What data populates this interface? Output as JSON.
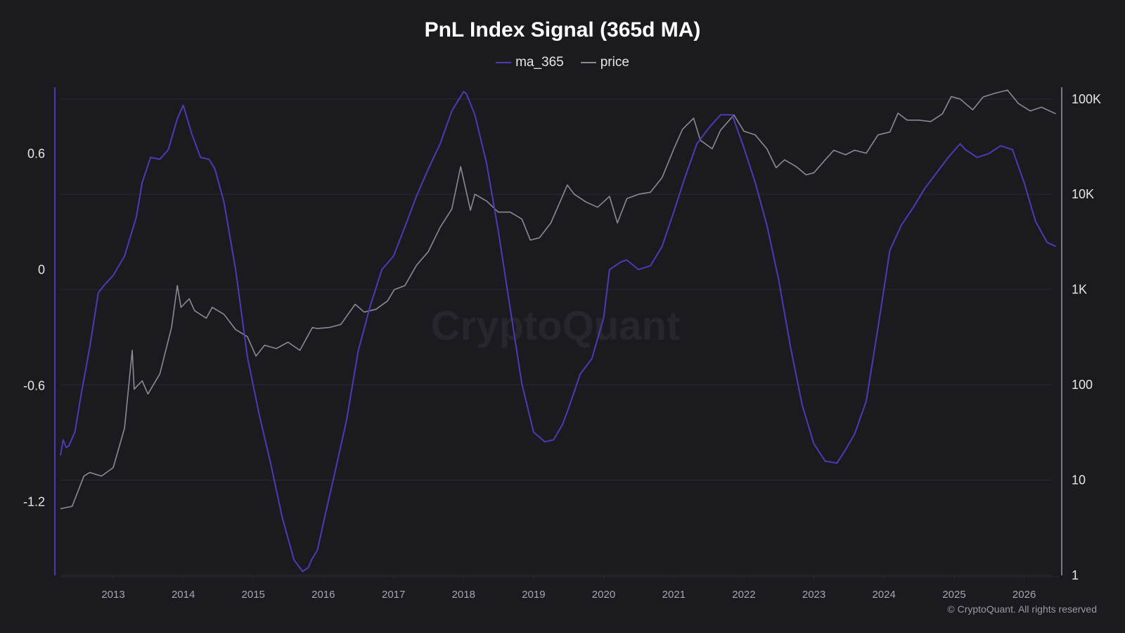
{
  "chart_data": {
    "type": "line",
    "title": "PnL Index Signal (365d MA)",
    "watermark": "CryptoQuant",
    "copyright": "© CryptoQuant. All rights reserved",
    "x_range": [
      "2012-04-01",
      "2026-07-01"
    ],
    "x_ticks": [
      "2013",
      "2014",
      "2015",
      "2016",
      "2017",
      "2018",
      "2019",
      "2020",
      "2021",
      "2022",
      "2023",
      "2024",
      "2025",
      "2026"
    ],
    "y_left": {
      "ticks": [
        0.6,
        0,
        -0.6,
        -1.2
      ],
      "tick_labels": [
        "0.6",
        "0",
        "-0.6",
        "-1.2"
      ],
      "range": [
        -1.58,
        1.03
      ]
    },
    "y_right": {
      "scale": "log",
      "ticks": [
        100000,
        10000,
        1000,
        100,
        10,
        1
      ],
      "tick_labels": [
        "100K",
        "10K",
        "1K",
        "100",
        "10",
        "1"
      ],
      "range": [
        1,
        200000
      ]
    },
    "grid": "horizontal",
    "legend_position": "top-center",
    "colors": {
      "background": "#1a1a1f",
      "ma_365": "#4d3bb5",
      "price": "#8a8a92",
      "grid": "#2b2b33",
      "left_axis": "#4d3bb5",
      "right_axis": "#9a9aa2"
    },
    "series": [
      {
        "name": "ma_365",
        "axis": "left",
        "x": [
          "2012-04-01",
          "2012-04-15",
          "2012-05-01",
          "2012-05-15",
          "2012-06-15",
          "2012-07-15",
          "2012-09-01",
          "2012-10-15",
          "2012-11-15",
          "2013-01-01",
          "2013-03-01",
          "2013-05-01",
          "2013-06-01",
          "2013-07-15",
          "2013-09-01",
          "2013-10-15",
          "2013-12-01",
          "2014-01-01",
          "2014-02-15",
          "2014-04-01",
          "2014-05-15",
          "2014-06-15",
          "2014-08-01",
          "2014-10-01",
          "2014-12-01",
          "2015-02-01",
          "2015-04-01",
          "2015-06-01",
          "2015-08-01",
          "2015-09-15",
          "2015-10-15",
          "2015-11-01",
          "2015-12-01",
          "2016-01-15",
          "2016-03-01",
          "2016-05-01",
          "2016-07-01",
          "2016-09-01",
          "2016-11-01",
          "2017-01-01",
          "2017-03-01",
          "2017-05-01",
          "2017-07-01",
          "2017-09-01",
          "2017-11-01",
          "2018-01-01",
          "2018-01-15",
          "2018-03-01",
          "2018-05-01",
          "2018-07-01",
          "2018-09-01",
          "2018-11-01",
          "2019-01-01",
          "2019-03-01",
          "2019-04-15",
          "2019-06-01",
          "2019-07-01",
          "2019-09-01",
          "2019-11-01",
          "2020-01-01",
          "2020-02-01",
          "2020-04-01",
          "2020-05-01",
          "2020-07-01",
          "2020-09-01",
          "2020-11-01",
          "2021-01-01",
          "2021-03-01",
          "2021-05-01",
          "2021-07-01",
          "2021-09-01",
          "2021-11-01",
          "2022-01-01",
          "2022-03-01",
          "2022-05-01",
          "2022-07-01",
          "2022-09-01",
          "2022-11-01",
          "2023-01-01",
          "2023-03-01",
          "2023-05-01",
          "2023-06-15",
          "2023-08-01",
          "2023-10-01",
          "2023-12-01",
          "2024-02-01",
          "2024-04-01",
          "2024-06-01",
          "2024-08-01",
          "2024-10-01",
          "2024-12-01",
          "2025-02-01",
          "2025-03-01",
          "2025-05-01",
          "2025-07-01",
          "2025-09-01",
          "2025-11-01",
          "2026-01-01",
          "2026-03-01",
          "2026-05-01",
          "2026-06-15"
        ],
        "y": [
          -0.96,
          -0.88,
          -0.92,
          -0.91,
          -0.84,
          -0.66,
          -0.4,
          -0.12,
          -0.08,
          -0.03,
          0.07,
          0.27,
          0.45,
          0.58,
          0.57,
          0.62,
          0.78,
          0.85,
          0.7,
          0.58,
          0.57,
          0.52,
          0.35,
          0.0,
          -0.45,
          -0.75,
          -1.0,
          -1.28,
          -1.5,
          -1.56,
          -1.54,
          -1.5,
          -1.45,
          -1.25,
          -1.05,
          -0.78,
          -0.42,
          -0.19,
          0.0,
          0.07,
          0.22,
          0.38,
          0.52,
          0.65,
          0.82,
          0.92,
          0.91,
          0.8,
          0.55,
          0.2,
          -0.2,
          -0.59,
          -0.84,
          -0.89,
          -0.88,
          -0.8,
          -0.72,
          -0.54,
          -0.46,
          -0.25,
          0.0,
          0.04,
          0.05,
          0.0,
          0.02,
          0.12,
          0.3,
          0.48,
          0.65,
          0.73,
          0.8,
          0.8,
          0.63,
          0.45,
          0.23,
          -0.05,
          -0.4,
          -0.7,
          -0.9,
          -0.99,
          -1.0,
          -0.93,
          -0.85,
          -0.68,
          -0.3,
          0.1,
          0.23,
          0.32,
          0.42,
          0.5,
          0.58,
          0.65,
          0.62,
          0.58,
          0.6,
          0.64,
          0.62,
          0.45,
          0.25,
          0.14,
          0.12
        ]
      },
      {
        "name": "price",
        "axis": "right",
        "x": [
          "2012-04-01",
          "2012-06-01",
          "2012-08-01",
          "2012-09-01",
          "2012-11-01",
          "2013-01-01",
          "2013-03-01",
          "2013-04-10",
          "2013-04-20",
          "2013-06-01",
          "2013-07-01",
          "2013-09-01",
          "2013-11-01",
          "2013-12-01",
          "2013-12-20",
          "2014-02-01",
          "2014-03-01",
          "2014-05-01",
          "2014-06-01",
          "2014-08-01",
          "2014-10-01",
          "2014-12-01",
          "2015-01-15",
          "2015-03-01",
          "2015-05-01",
          "2015-07-01",
          "2015-09-01",
          "2015-11-05",
          "2015-12-01",
          "2016-02-01",
          "2016-04-01",
          "2016-06-15",
          "2016-08-01",
          "2016-10-01",
          "2016-12-01",
          "2017-01-05",
          "2017-03-01",
          "2017-05-01",
          "2017-07-01",
          "2017-09-01",
          "2017-11-01",
          "2017-12-17",
          "2018-02-06",
          "2018-03-01",
          "2018-05-01",
          "2018-07-01",
          "2018-09-01",
          "2018-11-01",
          "2018-12-15",
          "2019-02-01",
          "2019-04-01",
          "2019-06-26",
          "2019-08-01",
          "2019-10-01",
          "2019-12-01",
          "2020-02-01",
          "2020-03-13",
          "2020-05-01",
          "2020-07-01",
          "2020-09-01",
          "2020-11-01",
          "2021-01-01",
          "2021-02-15",
          "2021-04-14",
          "2021-05-19",
          "2021-07-20",
          "2021-09-01",
          "2021-11-10",
          "2022-01-01",
          "2022-03-01",
          "2022-05-01",
          "2022-06-18",
          "2022-08-01",
          "2022-10-01",
          "2022-11-21",
          "2023-01-01",
          "2023-03-01",
          "2023-04-15",
          "2023-06-15",
          "2023-08-01",
          "2023-10-01",
          "2023-12-01",
          "2024-02-01",
          "2024-03-14",
          "2024-05-01",
          "2024-07-01",
          "2024-09-01",
          "2024-11-01",
          "2024-12-17",
          "2025-02-01",
          "2025-04-08",
          "2025-06-01",
          "2025-08-01",
          "2025-10-06",
          "2025-12-01",
          "2026-02-01",
          "2026-04-01",
          "2026-06-15"
        ],
        "y": [
          5,
          5.3,
          11,
          12,
          11,
          13.5,
          35,
          230,
          90,
          110,
          80,
          130,
          400,
          1100,
          650,
          800,
          600,
          500,
          650,
          550,
          380,
          320,
          200,
          260,
          240,
          280,
          230,
          400,
          390,
          400,
          430,
          700,
          580,
          620,
          760,
          1000,
          1100,
          1800,
          2500,
          4500,
          7000,
          19500,
          6800,
          10000,
          8500,
          6500,
          6500,
          5500,
          3300,
          3500,
          5000,
          12500,
          10000,
          8300,
          7300,
          9500,
          5000,
          9000,
          10000,
          10500,
          15000,
          30000,
          48000,
          63000,
          37000,
          30000,
          47000,
          68000,
          46000,
          42000,
          30000,
          19000,
          23000,
          19500,
          16000,
          16800,
          23000,
          29000,
          26000,
          29000,
          27000,
          42000,
          45000,
          71000,
          60000,
          60000,
          58000,
          70000,
          106000,
          100000,
          77000,
          105000,
          115000,
          124000,
          90000,
          75000,
          82000,
          70000
        ]
      }
    ]
  }
}
